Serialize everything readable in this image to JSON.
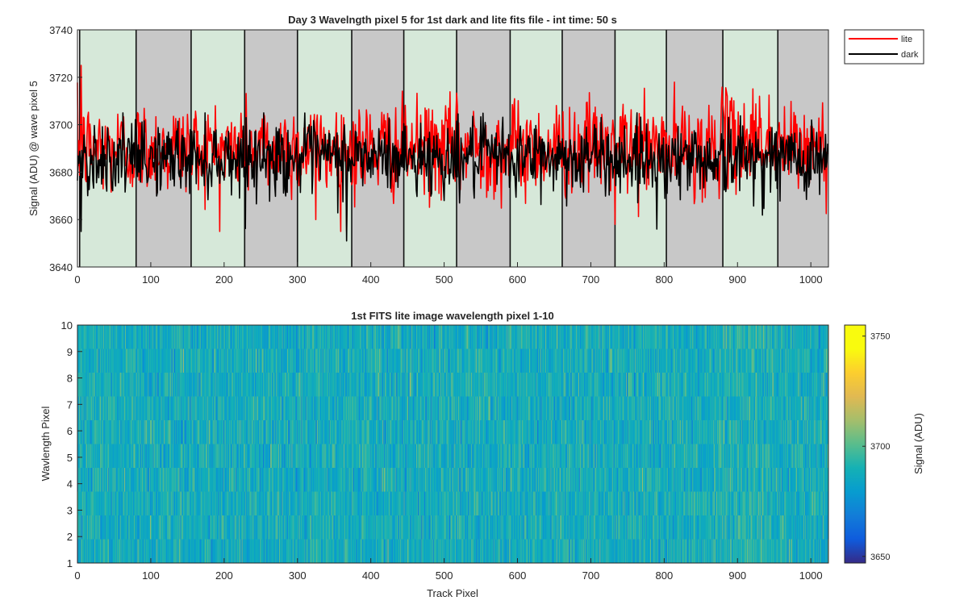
{
  "chart_data": [
    {
      "type": "line",
      "title": "Day 3 Wavelngth pixel 5 for 1st dark and lite fits file - int time: 50 s",
      "xlabel": "",
      "ylabel": "Signal (ADU) @ wave pixel 5",
      "xlim": [
        0,
        1024
      ],
      "ylim": [
        3640,
        3740
      ],
      "xticks": [
        0,
        100,
        200,
        300,
        400,
        500,
        600,
        700,
        800,
        900,
        1000
      ],
      "yticks": [
        3640,
        3660,
        3680,
        3700,
        3720,
        3740
      ],
      "grid": false,
      "legend_position": "outside-top-right",
      "series": [
        {
          "name": "lite",
          "color": "#ff0000",
          "approx_mean": 3690,
          "approx_range": [
            3655,
            3725
          ],
          "peak_points": [
            [
              5,
              3725
            ],
            [
              325,
              3660
            ],
            [
              367,
              3651
            ],
            [
              733,
              3658
            ],
            [
              930,
              3712
            ]
          ]
        },
        {
          "name": "dark",
          "color": "#000000",
          "approx_mean": 3686,
          "approx_range": [
            3651,
            3705
          ],
          "peak_points": [
            [
              5,
              3655
            ],
            [
              367,
              3651
            ],
            [
              790,
              3656
            ]
          ]
        }
      ],
      "shaded_bands": [
        {
          "x": [
            3,
            80
          ],
          "color": "#d6e8d9"
        },
        {
          "x": [
            80,
            155
          ],
          "color": "#c8c8c8"
        },
        {
          "x": [
            155,
            228
          ],
          "color": "#d6e8d9"
        },
        {
          "x": [
            228,
            300
          ],
          "color": "#c8c8c8"
        },
        {
          "x": [
            300,
            374
          ],
          "color": "#d6e8d9"
        },
        {
          "x": [
            374,
            445
          ],
          "color": "#c8c8c8"
        },
        {
          "x": [
            445,
            517
          ],
          "color": "#d6e8d9"
        },
        {
          "x": [
            517,
            590
          ],
          "color": "#c8c8c8"
        },
        {
          "x": [
            590,
            661
          ],
          "color": "#d6e8d9"
        },
        {
          "x": [
            661,
            733
          ],
          "color": "#c8c8c8"
        },
        {
          "x": [
            733,
            803
          ],
          "color": "#d6e8d9"
        },
        {
          "x": [
            803,
            880
          ],
          "color": "#c8c8c8"
        },
        {
          "x": [
            880,
            955
          ],
          "color": "#d6e8d9"
        },
        {
          "x": [
            955,
            1024
          ],
          "color": "#c8c8c8"
        }
      ]
    },
    {
      "type": "heatmap",
      "title": "1st FITS lite image wavelength pixel 1-10",
      "xlabel": "Track Pixel",
      "ylabel": "Wavlength Pixel",
      "xlim": [
        0,
        1024
      ],
      "ylim": [
        1,
        10
      ],
      "xticks": [
        0,
        100,
        200,
        300,
        400,
        500,
        600,
        700,
        800,
        900,
        1000
      ],
      "yticks": [
        1,
        2,
        3,
        4,
        5,
        6,
        7,
        8,
        9,
        10
      ],
      "rows": 10,
      "columns": 1024,
      "colorbar": {
        "label": "Signal (ADU)",
        "range": [
          3647,
          3755
        ],
        "ticks": [
          3650,
          3700,
          3750
        ],
        "colormap": "parula"
      }
    }
  ]
}
